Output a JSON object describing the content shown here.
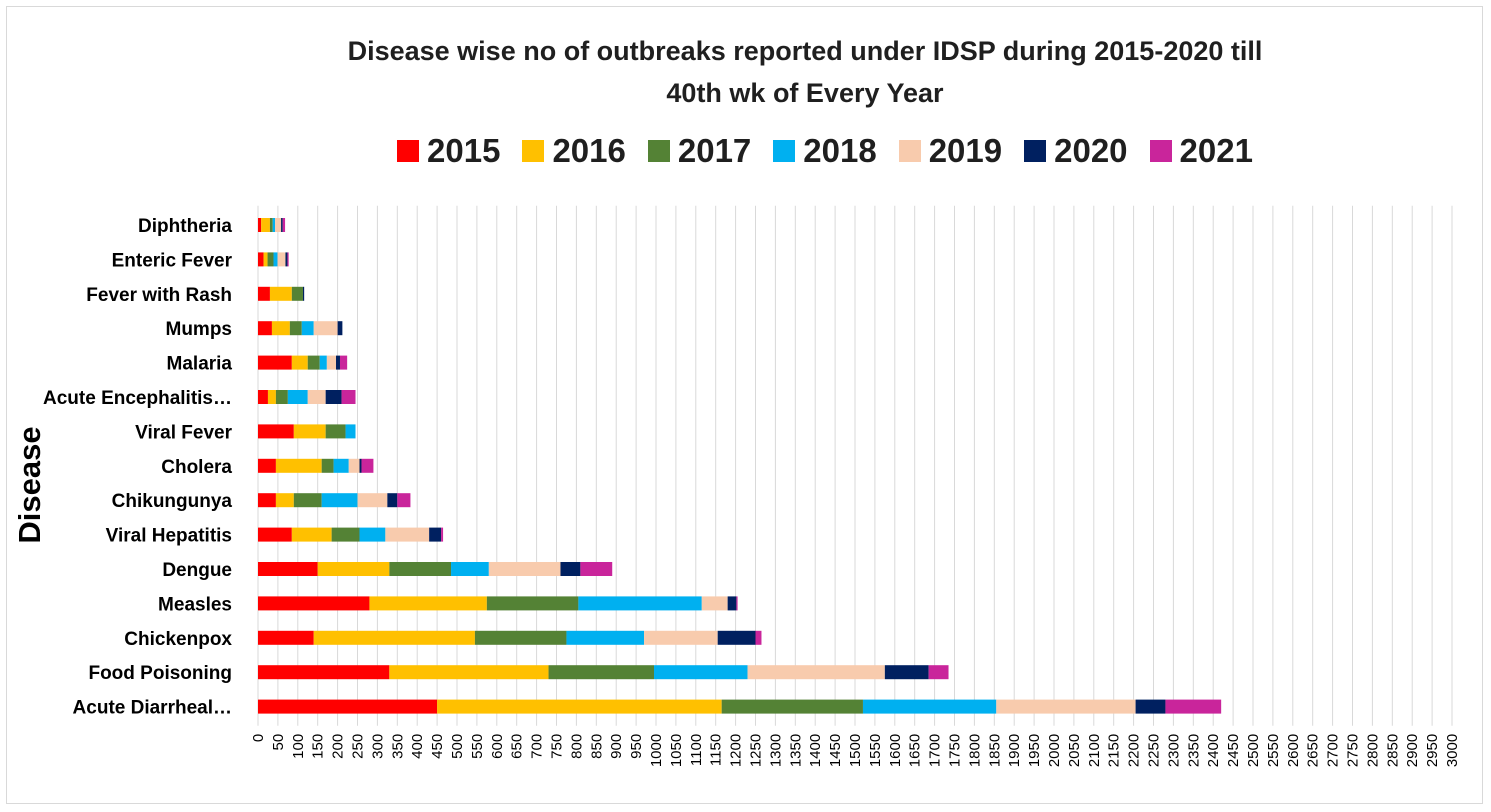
{
  "chart_data": {
    "type": "bar",
    "orientation": "horizontal",
    "stacked": true,
    "title": "Disease wise no of outbreaks reported under IDSP during 2015-2020 till 40th wk of Every Year",
    "title_lines": [
      "Disease wise no of outbreaks reported under IDSP during 2015-2020 till",
      "40th wk of Every Year"
    ],
    "ylabel": "Disease",
    "xlabel": "",
    "xlim": [
      0,
      3000
    ],
    "x_tick_step": 50,
    "grid": "vertical",
    "legend_position": "top",
    "categories": [
      "Diphtheria",
      "Enteric Fever",
      "Fever with Rash",
      "Mumps",
      "Malaria",
      "Acute Encephalitis…",
      "Viral Fever",
      "Cholera",
      "Chikungunya",
      "Viral Hepatitis",
      "Dengue",
      "Measles",
      "Chickenpox",
      "Food Poisoning",
      "Acute Diarrheal…"
    ],
    "series": [
      {
        "name": "2015",
        "color": "#ff0000",
        "values": [
          8,
          14,
          30,
          35,
          85,
          25,
          90,
          45,
          45,
          85,
          150,
          280,
          140,
          330,
          450
        ]
      },
      {
        "name": "2016",
        "color": "#ffc000",
        "values": [
          22,
          10,
          55,
          45,
          40,
          20,
          80,
          115,
          45,
          100,
          180,
          295,
          405,
          400,
          715
        ]
      },
      {
        "name": "2017",
        "color": "#548235",
        "values": [
          7,
          15,
          28,
          30,
          30,
          30,
          50,
          30,
          70,
          70,
          155,
          230,
          230,
          265,
          355
        ]
      },
      {
        "name": "2018",
        "color": "#00b0f0",
        "values": [
          6,
          10,
          0,
          30,
          18,
          50,
          25,
          38,
          90,
          65,
          95,
          310,
          195,
          235,
          335
        ]
      },
      {
        "name": "2019",
        "color": "#f8cbad",
        "values": [
          15,
          20,
          0,
          60,
          23,
          45,
          0,
          27,
          75,
          110,
          180,
          65,
          185,
          345,
          350
        ]
      },
      {
        "name": "2020",
        "color": "#002060",
        "values": [
          4,
          5,
          3,
          12,
          10,
          40,
          0,
          5,
          25,
          30,
          50,
          22,
          95,
          110,
          75
        ]
      },
      {
        "name": "2021",
        "color": "#c9259b",
        "values": [
          6,
          3,
          0,
          0,
          18,
          35,
          0,
          30,
          33,
          5,
          80,
          3,
          15,
          50,
          140
        ]
      }
    ]
  }
}
